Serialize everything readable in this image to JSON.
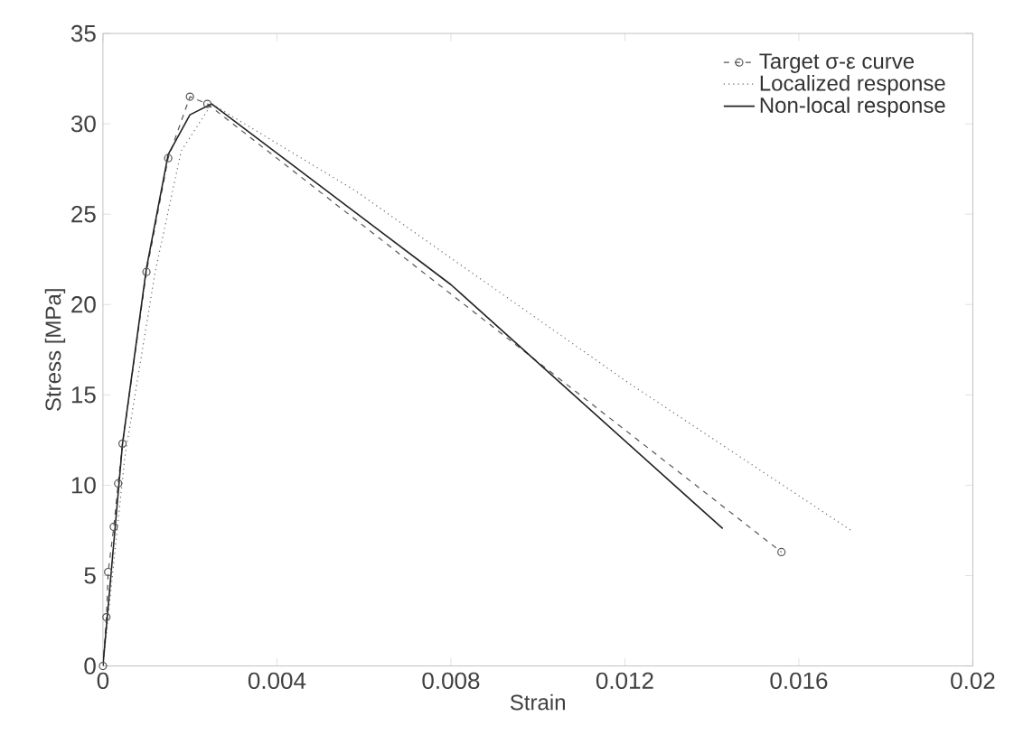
{
  "chart_data": {
    "type": "line",
    "xlabel": "Strain",
    "ylabel": "Stress [MPa]",
    "xlim": [
      0,
      0.02
    ],
    "ylim": [
      0,
      35
    ],
    "xticks": [
      0,
      0.004,
      0.008,
      0.012,
      0.016,
      0.02
    ],
    "yticks": [
      0,
      5,
      10,
      15,
      20,
      25,
      30,
      35
    ],
    "legend": "top right",
    "grid": false,
    "series": [
      {
        "name": "Target σ-ε curve",
        "color": "#555555",
        "line_style": "dashed",
        "marker": "circle",
        "x": [
          0,
          8e-05,
          0.00012,
          0.00025,
          0.00035,
          0.00045,
          0.001,
          0.0015,
          0.002,
          0.0024,
          0.0156
        ],
        "values": [
          0,
          2.7,
          5.2,
          7.7,
          10.1,
          12.3,
          21.8,
          28.1,
          31.5,
          31.1,
          6.3
        ]
      },
      {
        "name": "Localized response",
        "color": "#666666",
        "line_style": "dotted",
        "marker": "none",
        "x": [
          0,
          0.0005,
          0.0012,
          0.0018,
          0.0025,
          0.0058,
          0.012,
          0.0172
        ],
        "values": [
          0,
          11.5,
          21.8,
          28.5,
          31.1,
          26.3,
          15.8,
          7.5
        ]
      },
      {
        "name": "Non-local response",
        "color": "#222222",
        "line_style": "solid",
        "marker": "none",
        "x": [
          0,
          0.00045,
          0.001,
          0.0015,
          0.002,
          0.0025,
          0.008,
          0.01425
        ],
        "values": [
          0,
          12.3,
          22.0,
          28.3,
          30.5,
          31.1,
          21.1,
          7.6
        ]
      }
    ]
  }
}
